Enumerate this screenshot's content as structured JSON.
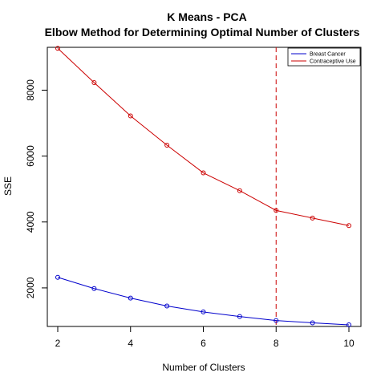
{
  "chart_data": {
    "type": "line",
    "title": "K Means - PCA",
    "subtitle": "Elbow Method for Determining Optimal Number of Clusters",
    "xlabel": "Number of Clusters",
    "ylabel": "SSE",
    "xlim": [
      2,
      10
    ],
    "ylim": [
      800,
      9300
    ],
    "xticks": [
      2,
      4,
      6,
      8,
      10
    ],
    "yticks": [
      2000,
      4000,
      6000,
      8000
    ],
    "x": [
      2,
      3,
      4,
      5,
      6,
      7,
      8,
      9,
      10
    ],
    "series": [
      {
        "name": "Breast Cancer",
        "color": "#0000cc",
        "values": [
          2320,
          1980,
          1690,
          1450,
          1270,
          1130,
          1010,
          940,
          880
        ]
      },
      {
        "name": "Contraceptive Use",
        "color": "#cc0000",
        "values": [
          9270,
          8230,
          7220,
          6330,
          5490,
          4950,
          4350,
          4120,
          3890
        ]
      }
    ],
    "vline": {
      "x": 8,
      "color": "#cc0000",
      "style": "dashed"
    },
    "legend": {
      "position": "top-right"
    },
    "grid": false
  }
}
